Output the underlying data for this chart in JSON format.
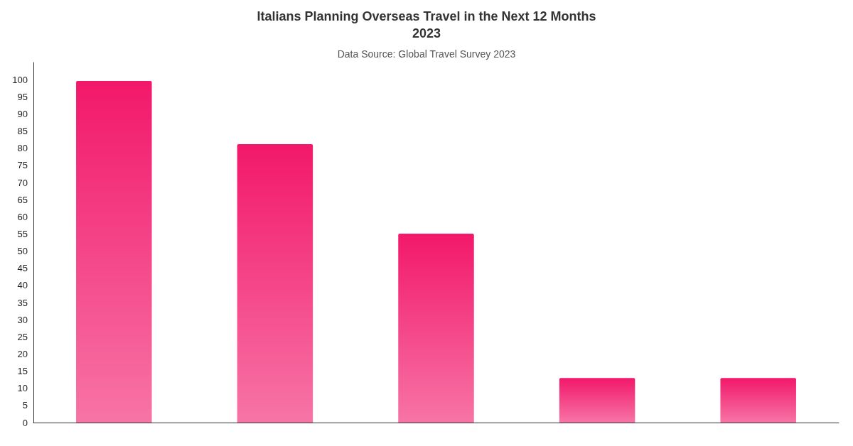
{
  "chart_data": {
    "type": "bar",
    "title": "Italians Planning Overseas Travel in the Next 12 Months\n2023",
    "subtitle": "Data Source: Global Travel Survey 2023",
    "categories": [
      null,
      null,
      null,
      null,
      null
    ],
    "values": [
      99.6,
      81.2,
      55.1,
      13.0,
      13.0
    ],
    "color": "#f2186a",
    "ylim": [
      0,
      105
    ],
    "yticks": [
      0,
      5,
      10,
      15,
      20,
      25,
      30,
      35,
      40,
      45,
      50,
      55,
      60,
      65,
      70,
      75,
      80,
      85,
      90,
      95,
      100
    ],
    "grid": false
  }
}
